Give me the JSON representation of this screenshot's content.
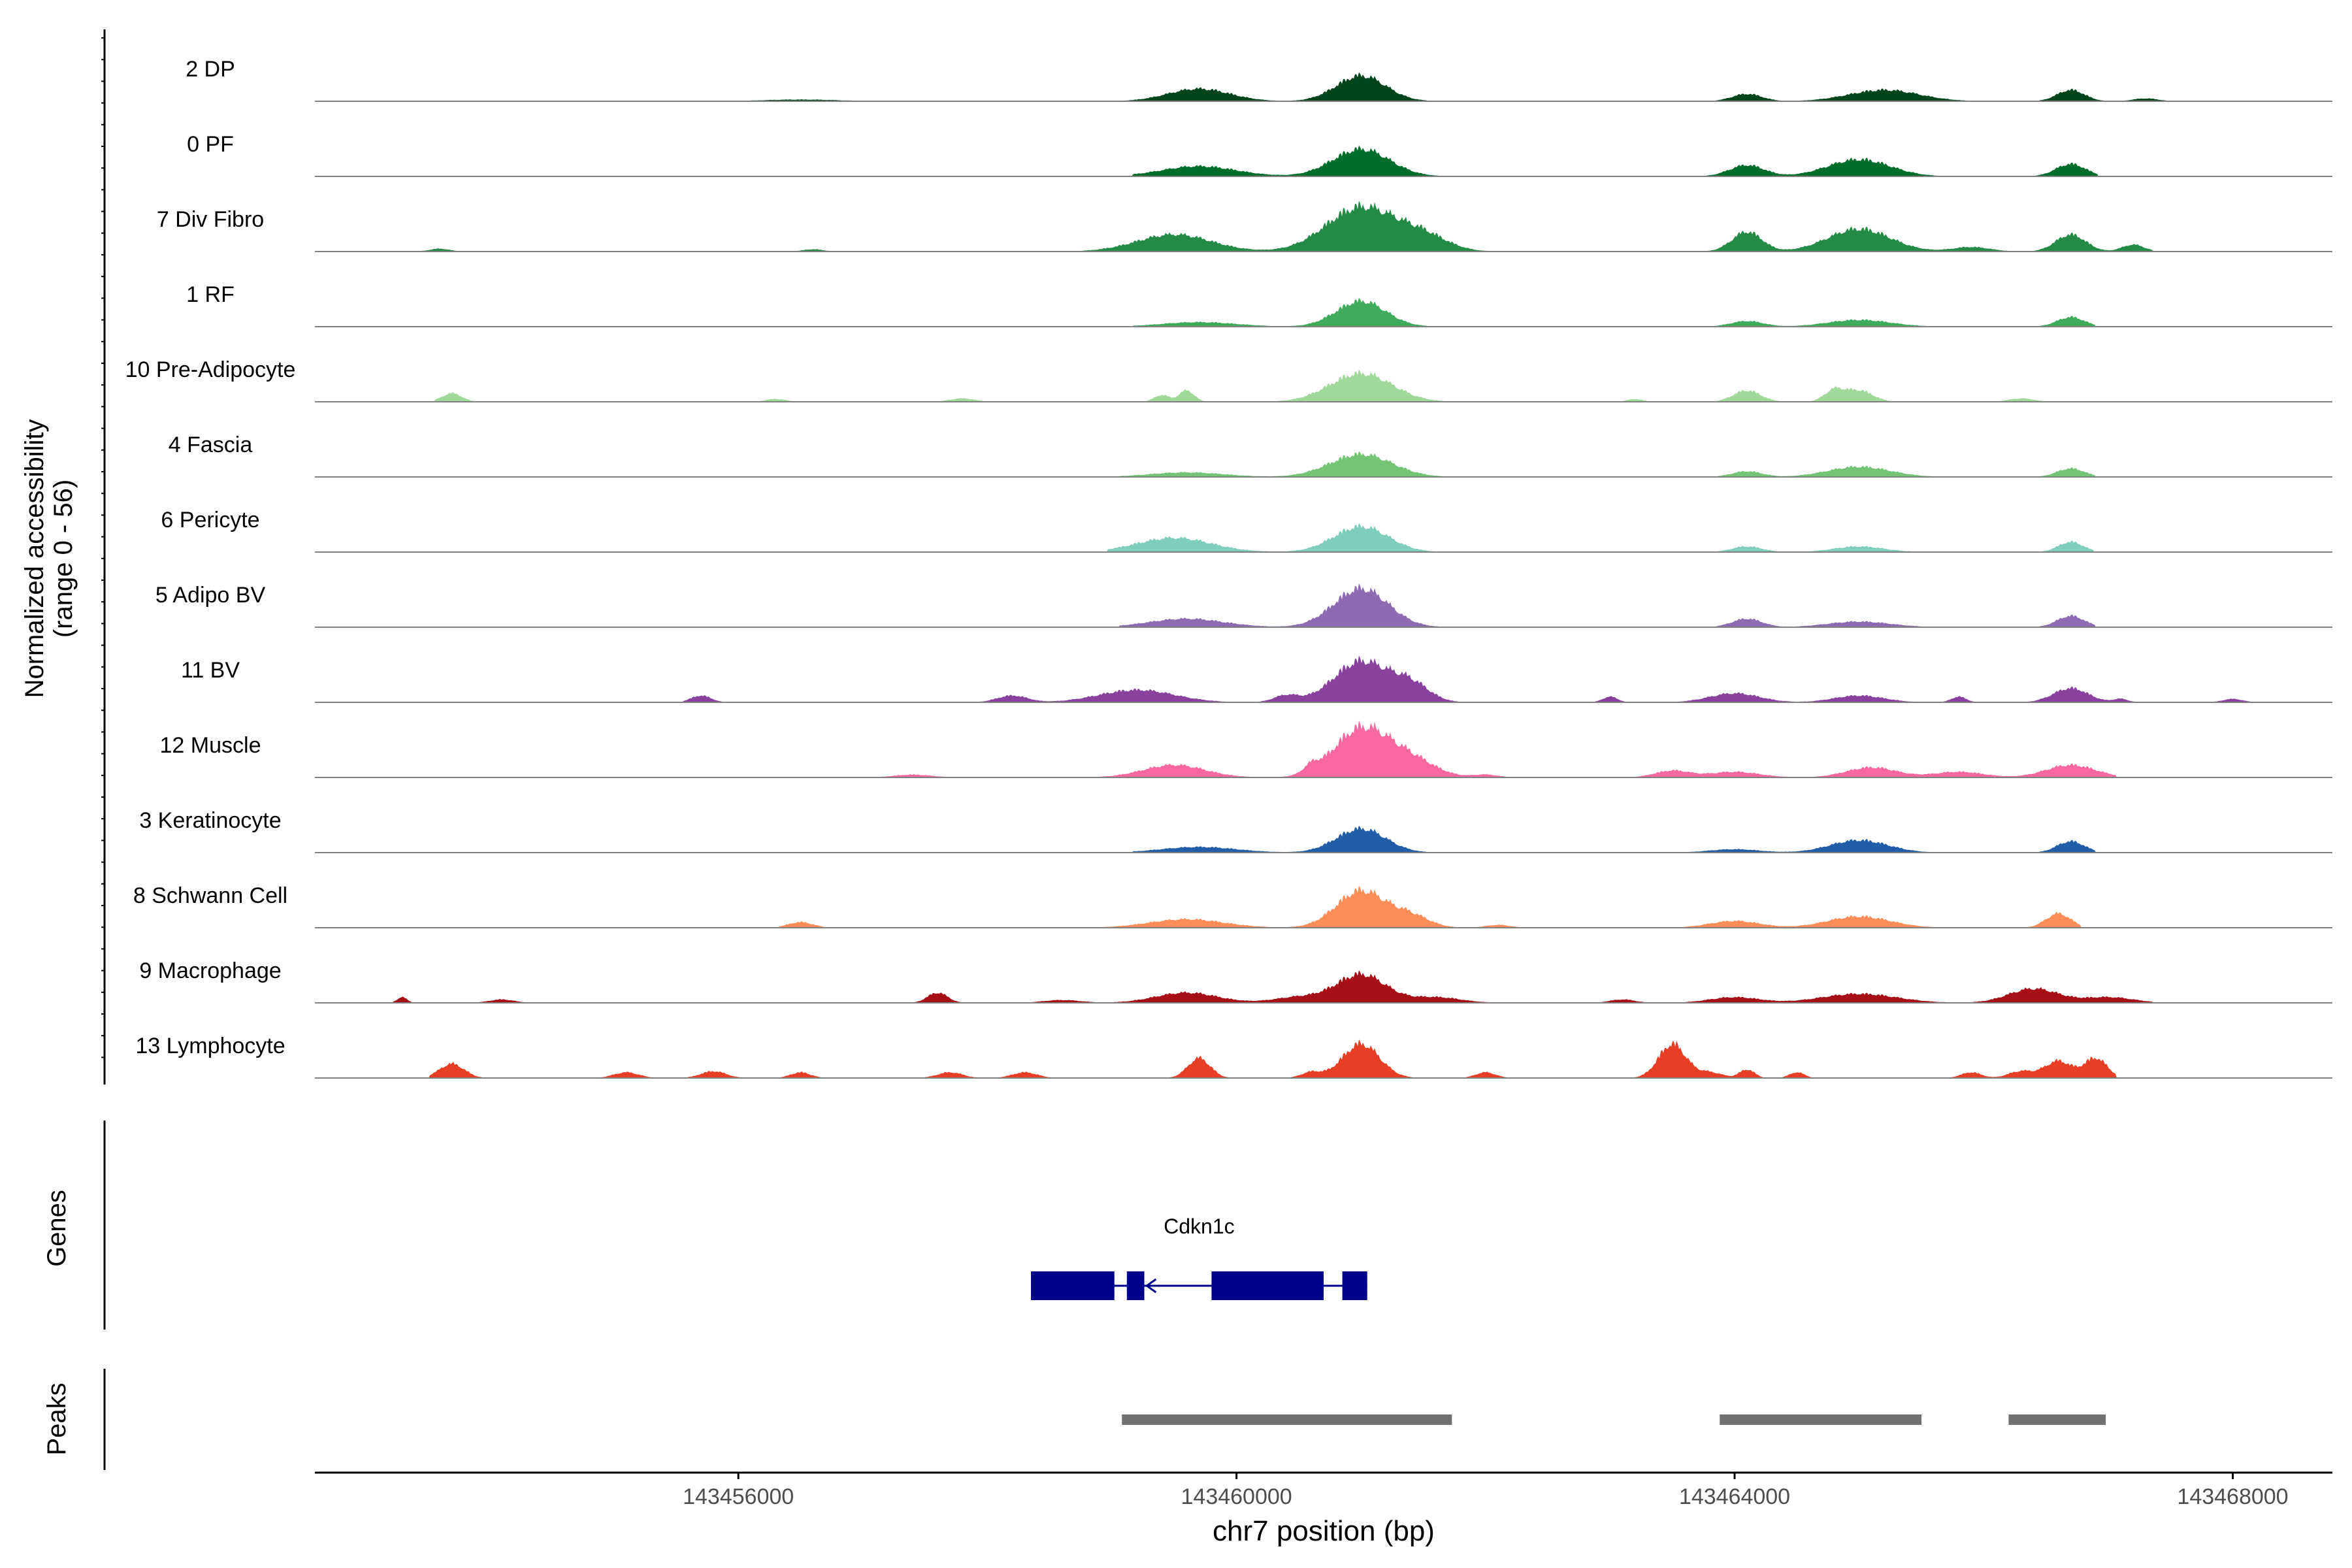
{
  "chart_data": {
    "type": "area",
    "title": "",
    "chromosome": "chr7",
    "xlabel": "chr7 position (bp)",
    "ylabel_line1": "Normalized accessibility",
    "ylabel_line2": "(range 0 - 56)",
    "y_range": [
      0,
      56
    ],
    "xlim": [
      143452600,
      143468800
    ],
    "x_ticks": [
      143456000,
      143460000,
      143464000,
      143468000
    ],
    "x_tick_labels": [
      "143456000",
      "143460000",
      "143464000",
      "143468000"
    ],
    "tracks": [
      {
        "name": "2 DP",
        "color": "#00441b",
        "peaks": [
          [
            143456500,
            0.03,
            300
          ],
          [
            143459700,
            0.22,
            250
          ],
          [
            143461000,
            0.45,
            200
          ],
          [
            143464100,
            0.13,
            120
          ],
          [
            143465200,
            0.2,
            280
          ],
          [
            143466700,
            0.2,
            110
          ],
          [
            143467300,
            0.05,
            100
          ]
        ]
      },
      {
        "name": "0 PF",
        "color": "#006d2c",
        "peaks": [
          [
            143459700,
            0.18,
            300
          ],
          [
            143461000,
            0.48,
            230
          ],
          [
            143464100,
            0.2,
            140
          ],
          [
            143465000,
            0.3,
            250
          ],
          [
            143466700,
            0.22,
            120
          ]
        ]
      },
      {
        "name": "7 Div Fibro",
        "color": "#238b45",
        "peaks": [
          [
            143453600,
            0.05,
            80
          ],
          [
            143456600,
            0.04,
            80
          ],
          [
            143459500,
            0.3,
            300
          ],
          [
            143461000,
            0.78,
            280
          ],
          [
            143461500,
            0.25,
            200
          ],
          [
            143464100,
            0.35,
            120
          ],
          [
            143465000,
            0.4,
            250
          ],
          [
            143465900,
            0.08,
            150
          ],
          [
            143466700,
            0.3,
            120
          ],
          [
            143467200,
            0.12,
            90
          ]
        ]
      },
      {
        "name": "1 RF",
        "color": "#41ab5d",
        "peaks": [
          [
            143459700,
            0.08,
            300
          ],
          [
            143461000,
            0.45,
            200
          ],
          [
            143464100,
            0.1,
            130
          ],
          [
            143465000,
            0.12,
            250
          ],
          [
            143466700,
            0.17,
            110
          ]
        ]
      },
      {
        "name": "10 Pre-Adipocyte",
        "color": "#a1d99b",
        "peaks": [
          [
            143453700,
            0.15,
            80
          ],
          [
            143456300,
            0.05,
            80
          ],
          [
            143457800,
            0.06,
            100
          ],
          [
            143459400,
            0.12,
            60
          ],
          [
            143459600,
            0.2,
            60
          ],
          [
            143461000,
            0.5,
            250
          ],
          [
            143463200,
            0.05,
            60
          ],
          [
            143464100,
            0.2,
            110
          ],
          [
            143464800,
            0.2,
            80
          ],
          [
            143465000,
            0.2,
            110
          ],
          [
            143466300,
            0.06,
            100
          ]
        ]
      },
      {
        "name": "4 Fascia",
        "color": "#74c476",
        "peaks": [
          [
            143459600,
            0.08,
            300
          ],
          [
            143461000,
            0.4,
            250
          ],
          [
            143464100,
            0.1,
            120
          ],
          [
            143465000,
            0.18,
            250
          ],
          [
            143466700,
            0.15,
            110
          ]
        ]
      },
      {
        "name": "6 Pericyte",
        "color": "#7fcdbb",
        "peaks": [
          [
            143459500,
            0.25,
            300
          ],
          [
            143461000,
            0.45,
            220
          ],
          [
            143464100,
            0.1,
            120
          ],
          [
            143465000,
            0.1,
            200
          ],
          [
            143466700,
            0.18,
            100
          ]
        ]
      },
      {
        "name": "5 Adipo BV",
        "color": "#8c6bb1",
        "peaks": [
          [
            143459600,
            0.15,
            300
          ],
          [
            143461000,
            0.68,
            220
          ],
          [
            143464100,
            0.15,
            120
          ],
          [
            143465000,
            0.1,
            250
          ],
          [
            143466700,
            0.2,
            110
          ]
        ]
      },
      {
        "name": "11 BV",
        "color": "#88419d",
        "peaks": [
          [
            143455700,
            0.12,
            80
          ],
          [
            143458200,
            0.12,
            120
          ],
          [
            143459200,
            0.22,
            300
          ],
          [
            143460400,
            0.12,
            100
          ],
          [
            143461000,
            0.72,
            220
          ],
          [
            143461400,
            0.3,
            150
          ],
          [
            143463000,
            0.1,
            60
          ],
          [
            143464000,
            0.16,
            200
          ],
          [
            143465000,
            0.12,
            200
          ],
          [
            143465800,
            0.1,
            60
          ],
          [
            143466700,
            0.25,
            140
          ],
          [
            143467100,
            0.06,
            60
          ],
          [
            143468000,
            0.06,
            80
          ]
        ]
      },
      {
        "name": "12 Muscle",
        "color": "#f768a1",
        "peaks": [
          [
            143457400,
            0.05,
            150
          ],
          [
            143459500,
            0.22,
            250
          ],
          [
            143460600,
            0.12,
            60
          ],
          [
            143461000,
            0.85,
            220
          ],
          [
            143461400,
            0.3,
            200
          ],
          [
            143462000,
            0.05,
            100
          ],
          [
            143463500,
            0.12,
            140
          ],
          [
            143464000,
            0.1,
            200
          ],
          [
            143465100,
            0.18,
            200
          ],
          [
            143465800,
            0.1,
            200
          ],
          [
            143466700,
            0.22,
            200
          ]
        ]
      },
      {
        "name": "3 Keratinocyte",
        "color": "#225ea8",
        "peaks": [
          [
            143459700,
            0.1,
            300
          ],
          [
            143461000,
            0.42,
            200
          ],
          [
            143464000,
            0.06,
            200
          ],
          [
            143465000,
            0.22,
            230
          ],
          [
            143466700,
            0.2,
            110
          ]
        ]
      },
      {
        "name": "8 Schwann Cell",
        "color": "#fc8d59",
        "peaks": [
          [
            143456500,
            0.1,
            100
          ],
          [
            143459600,
            0.15,
            300
          ],
          [
            143461000,
            0.65,
            200
          ],
          [
            143461400,
            0.2,
            150
          ],
          [
            143462100,
            0.05,
            100
          ],
          [
            143464000,
            0.12,
            200
          ],
          [
            143465000,
            0.2,
            250
          ],
          [
            143466600,
            0.25,
            100
          ]
        ]
      },
      {
        "name": "9 Macrophage",
        "color": "#a50f15",
        "peaks": [
          [
            143453300,
            0.1,
            40
          ],
          [
            143454100,
            0.06,
            100
          ],
          [
            143457600,
            0.18,
            80
          ],
          [
            143458600,
            0.05,
            150
          ],
          [
            143459600,
            0.18,
            250
          ],
          [
            143460500,
            0.1,
            200
          ],
          [
            143461000,
            0.5,
            200
          ],
          [
            143461600,
            0.1,
            200
          ],
          [
            143463100,
            0.06,
            100
          ],
          [
            143464000,
            0.1,
            200
          ],
          [
            143465000,
            0.16,
            300
          ],
          [
            143466400,
            0.25,
            200
          ],
          [
            143467000,
            0.1,
            200
          ]
        ]
      },
      {
        "name": "13 Lymphocyte",
        "color": "#e73e26",
        "peaks": [
          [
            143453700,
            0.25,
            100
          ],
          [
            143455100,
            0.1,
            100
          ],
          [
            143455800,
            0.12,
            100
          ],
          [
            143456500,
            0.1,
            80
          ],
          [
            143457700,
            0.1,
            100
          ],
          [
            143458300,
            0.1,
            100
          ],
          [
            143459700,
            0.35,
            90
          ],
          [
            143460600,
            0.1,
            80
          ],
          [
            143461000,
            0.6,
            150
          ],
          [
            143462000,
            0.1,
            80
          ],
          [
            143463500,
            0.6,
            110
          ],
          [
            143463800,
            0.1,
            100
          ],
          [
            143464100,
            0.15,
            60
          ],
          [
            143464500,
            0.1,
            60
          ],
          [
            143465900,
            0.1,
            80
          ],
          [
            143466300,
            0.12,
            100
          ],
          [
            143466600,
            0.3,
            110
          ],
          [
            143466900,
            0.35,
            90
          ]
        ]
      }
    ]
  },
  "genes_panel": {
    "label": "Genes",
    "genes": [
      {
        "name": "Cdkn1c",
        "start": 143458350,
        "end": 143461050,
        "strand": "-",
        "exons": [
          [
            143458350,
            143459020
          ],
          [
            143459120,
            143459260
          ],
          [
            143459800,
            143460700
          ],
          [
            143460850,
            143461050
          ]
        ]
      }
    ]
  },
  "peaks_panel": {
    "label": "Peaks",
    "peaks": [
      [
        143459080,
        143461730
      ],
      [
        143463880,
        143465500
      ],
      [
        143466200,
        143466980
      ]
    ]
  }
}
